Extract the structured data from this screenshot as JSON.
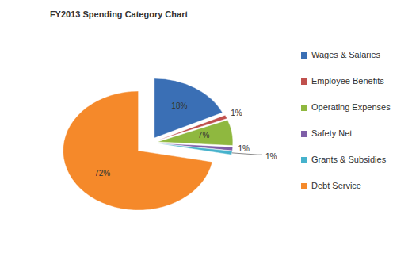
{
  "chart_data": {
    "type": "pie",
    "title": "FY2013 Spending Category Chart",
    "categories": [
      "Wages & Salaries",
      "Employee Benefits",
      "Operating Expenses",
      "Safety Net",
      "Grants & Subsidies",
      "Debt Service"
    ],
    "values": [
      18,
      1,
      7,
      1,
      1,
      72
    ],
    "value_labels": [
      "18%",
      "1%",
      "7%",
      "1%",
      "1%",
      "72%"
    ],
    "colors": [
      "#3a6fb5",
      "#c0504d",
      "#8fb83f",
      "#7f5fa8",
      "#46b2cc",
      "#f5892a"
    ],
    "data_labels": true,
    "legend": "right"
  }
}
